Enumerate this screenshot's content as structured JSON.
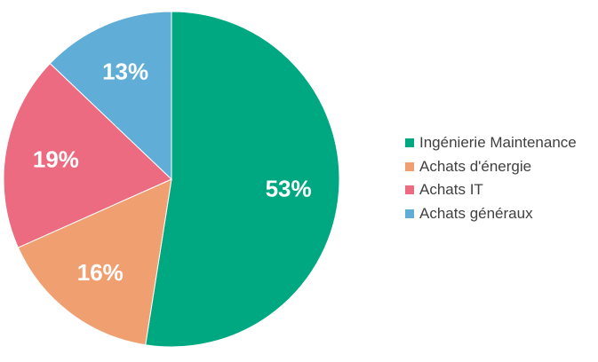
{
  "chart_data": {
    "type": "pie",
    "start_angle_deg": 0,
    "direction": "clockwise",
    "legend_position": "right",
    "slices": [
      {
        "label": "Ingénierie Maintenance",
        "value": 53,
        "value_label": "53%",
        "color": "#00A882"
      },
      {
        "label": "Achats d'énergie",
        "value": 16,
        "value_label": "16%",
        "color": "#F0A070"
      },
      {
        "label": "Achats IT",
        "value": 19,
        "value_label": "19%",
        "color": "#EC6B80"
      },
      {
        "label": "Achats généraux",
        "value": 13,
        "value_label": "13%",
        "color": "#60ADD8"
      }
    ]
  }
}
